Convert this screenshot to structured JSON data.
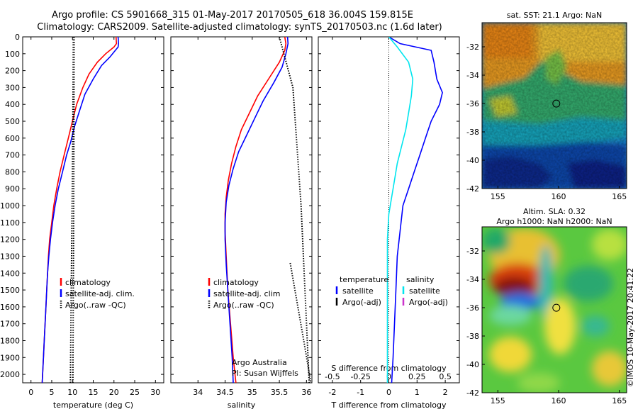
{
  "header": {
    "line1": "Argo profile: CS 5901668_315 01-May-2017 20170505_618 36.004S 159.815E",
    "line2": "Climatology: CARS2009. Satellite-adjusted climatology: synTS_20170503.nc (1.6d later)"
  },
  "stamp": "©IMOS 10-May-2017 20:41:22",
  "colors": {
    "climatology": "#ff0000",
    "satellite": "#0000ff",
    "argo": "#000000",
    "salinity_sat": "#00e5ee",
    "salinity_argo": "#cc33cc"
  },
  "chart_data": [
    {
      "id": "temperature",
      "type": "line",
      "xlabel": "temperature (deg C)",
      "ylabel": "",
      "xlim": [
        -2,
        32
      ],
      "ylim": [
        2050,
        0
      ],
      "x_ticks": [
        0,
        5,
        10,
        15,
        20,
        25,
        30
      ],
      "y_ticks": [
        0,
        100,
        200,
        300,
        400,
        500,
        600,
        700,
        800,
        900,
        1000,
        1100,
        1200,
        1300,
        1400,
        1500,
        1600,
        1700,
        1800,
        1900,
        2000
      ],
      "legend": [
        "climatology",
        "satellite-adj. clim.",
        "Argo(..raw -QC)"
      ],
      "series": [
        {
          "name": "climatology",
          "points": [
            [
              20.5,
              0
            ],
            [
              20.6,
              40
            ],
            [
              20,
              60
            ],
            [
              18,
              100
            ],
            [
              16,
              150
            ],
            [
              14,
              220
            ],
            [
              12.5,
              300
            ],
            [
              11,
              400
            ],
            [
              10,
              500
            ],
            [
              9,
              600
            ],
            [
              8,
              700
            ],
            [
              7,
              800
            ],
            [
              6.2,
              900
            ],
            [
              5.5,
              1000
            ],
            [
              5,
              1100
            ],
            [
              4.5,
              1200
            ],
            [
              4.2,
              1300
            ],
            [
              4,
              1400
            ],
            [
              3.8,
              1500
            ],
            [
              3.6,
              1600
            ],
            [
              3.4,
              1700
            ],
            [
              3.2,
              1800
            ],
            [
              3,
              1900
            ],
            [
              2.8,
              2000
            ],
            [
              2.7,
              2050
            ]
          ]
        },
        {
          "name": "satellite-adj. clim.",
          "points": [
            [
              21,
              0
            ],
            [
              21.1,
              40
            ],
            [
              21,
              60
            ],
            [
              19,
              120
            ],
            [
              17,
              170
            ],
            [
              15,
              250
            ],
            [
              13,
              340
            ],
            [
              11.8,
              430
            ],
            [
              10.5,
              530
            ],
            [
              9.6,
              620
            ],
            [
              8.6,
              700
            ],
            [
              7.6,
              800
            ],
            [
              6.6,
              900
            ],
            [
              5.8,
              1000
            ],
            [
              5.2,
              1100
            ],
            [
              4.7,
              1200
            ],
            [
              4.3,
              1300
            ],
            [
              4,
              1400
            ],
            [
              3.8,
              1500
            ],
            [
              3.6,
              1600
            ],
            [
              3.4,
              1700
            ],
            [
              3.2,
              1800
            ],
            [
              3,
              1900
            ],
            [
              2.8,
              2000
            ],
            [
              2.7,
              2050
            ]
          ]
        },
        {
          "name": "Argo(..raw -QC)",
          "points": [
            [
              10.2,
              0
            ],
            [
              10.1,
              500
            ],
            [
              9.9,
              1000
            ],
            [
              9.7,
              1500
            ],
            [
              9.5,
              2050
            ]
          ]
        },
        {
          "name": "Argo(..raw -QC)",
          "points": [
            [
              10.4,
              0
            ],
            [
              10.3,
              1000
            ],
            [
              10.1,
              2050
            ]
          ]
        }
      ]
    },
    {
      "id": "salinity",
      "type": "line",
      "xlabel": "salinity",
      "ylabel": "",
      "xlim": [
        33.5,
        36.1
      ],
      "ylim": [
        2050,
        0
      ],
      "x_ticks": [
        34,
        34.5,
        35,
        35.5,
        36
      ],
      "legend": [
        "climatology",
        "satellite-adj. clim",
        "Argo(..raw -QC)"
      ],
      "annotations": [
        "Argo Australia",
        "PI: Susan Wijffels"
      ],
      "series": [
        {
          "name": "climatology",
          "points": [
            [
              35.6,
              0
            ],
            [
              35.62,
              40
            ],
            [
              35.6,
              80
            ],
            [
              35.5,
              150
            ],
            [
              35.3,
              250
            ],
            [
              35.1,
              350
            ],
            [
              34.95,
              450
            ],
            [
              34.8,
              550
            ],
            [
              34.7,
              650
            ],
            [
              34.62,
              750
            ],
            [
              34.56,
              850
            ],
            [
              34.52,
              950
            ],
            [
              34.5,
              1050
            ],
            [
              34.5,
              1150
            ],
            [
              34.52,
              1300
            ],
            [
              34.55,
              1500
            ],
            [
              34.6,
              1700
            ],
            [
              34.65,
              1900
            ],
            [
              34.7,
              2050
            ]
          ]
        },
        {
          "name": "satellite-adj. clim",
          "points": [
            [
              35.65,
              0
            ],
            [
              35.66,
              40
            ],
            [
              35.62,
              100
            ],
            [
              35.55,
              180
            ],
            [
              35.4,
              270
            ],
            [
              35.2,
              380
            ],
            [
              35.05,
              480
            ],
            [
              34.9,
              580
            ],
            [
              34.75,
              680
            ],
            [
              34.65,
              780
            ],
            [
              34.57,
              880
            ],
            [
              34.52,
              980
            ],
            [
              34.5,
              1100
            ],
            [
              34.5,
              1200
            ],
            [
              34.52,
              1350
            ],
            [
              34.56,
              1550
            ],
            [
              34.6,
              1750
            ],
            [
              34.63,
              1900
            ],
            [
              34.65,
              2050
            ]
          ]
        },
        {
          "name": "Argo(..raw -QC)",
          "points": [
            [
              35.5,
              0
            ],
            [
              35.75,
              300
            ],
            [
              35.9,
              1000
            ],
            [
              36.05,
              2050
            ]
          ]
        },
        {
          "name": "Argo(..raw -QC)",
          "points": [
            [
              35.7,
              1340
            ],
            [
              35.95,
              1800
            ],
            [
              36.08,
              2050
            ]
          ]
        }
      ]
    },
    {
      "id": "difference",
      "type": "line",
      "xlabel": "T difference from climatology",
      "x2label": "S difference from climatology",
      "ylabel": "",
      "xlim": [
        -2.5,
        2.5
      ],
      "ylim": [
        2050,
        0
      ],
      "x_ticks": [
        -2,
        -1,
        0,
        1,
        2
      ],
      "x2_ticks": [
        "-0.5",
        "-0.25",
        "0",
        "0.25",
        "0.5"
      ],
      "legend": [
        "temperature",
        "satellite",
        "Argo(-adj)",
        "salinity",
        "satellite",
        "Argo(-adj)"
      ],
      "series": [
        {
          "name": "satellite",
          "points": [
            [
              0,
              0
            ],
            [
              0.4,
              40
            ],
            [
              1.5,
              80
            ],
            [
              1.6,
              150
            ],
            [
              1.7,
              250
            ],
            [
              1.9,
              330
            ],
            [
              1.8,
              400
            ],
            [
              1.5,
              500
            ],
            [
              1.3,
              600
            ],
            [
              1.1,
              700
            ],
            [
              0.9,
              800
            ],
            [
              0.7,
              900
            ],
            [
              0.5,
              1000
            ],
            [
              0.4,
              1150
            ],
            [
              0.3,
              1300
            ],
            [
              0.25,
              1500
            ],
            [
              0.2,
              1700
            ],
            [
              0.15,
              1900
            ],
            [
              0.1,
              2050
            ]
          ]
        },
        {
          "name": "satellite",
          "points": [
            [
              0,
              0
            ],
            [
              0.3,
              60
            ],
            [
              0.7,
              150
            ],
            [
              0.85,
              250
            ],
            [
              0.8,
              350
            ],
            [
              0.7,
              450
            ],
            [
              0.6,
              550
            ],
            [
              0.45,
              650
            ],
            [
              0.3,
              750
            ],
            [
              0.2,
              850
            ],
            [
              0.1,
              950
            ],
            [
              0,
              1050
            ],
            [
              -0.05,
              1200
            ],
            [
              -0.05,
              1400
            ],
            [
              -0.05,
              1600
            ],
            [
              -0.05,
              1800
            ],
            [
              -0.05,
              2050
            ]
          ]
        }
      ]
    }
  ],
  "maps": [
    {
      "title": "sat. SST: 21.1 Argo: NaN",
      "x_ticks": [
        "155",
        "160",
        "165"
      ],
      "y_ticks": [
        "-32",
        "-34",
        "-36",
        "-38",
        "-40",
        "-42"
      ],
      "marker": [
        159.815,
        -36.004
      ]
    },
    {
      "title_line1": "Altim. SLA: 0.32",
      "title_line2": "Argo h1000: NaN h2000: NaN",
      "x_ticks": [
        "155",
        "160",
        "165"
      ],
      "y_ticks": [
        "-32",
        "-34",
        "-36",
        "-38",
        "-40",
        "-42"
      ],
      "marker": [
        159.815,
        -36.004
      ]
    }
  ]
}
